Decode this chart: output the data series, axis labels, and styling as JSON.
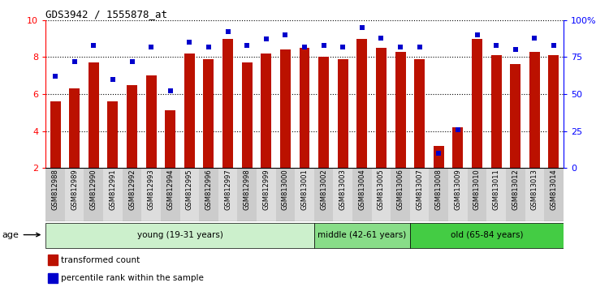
{
  "title": "GDS3942 / 1555878_at",
  "samples": [
    "GSM812988",
    "GSM812989",
    "GSM812990",
    "GSM812991",
    "GSM812992",
    "GSM812993",
    "GSM812994",
    "GSM812995",
    "GSM812996",
    "GSM812997",
    "GSM812998",
    "GSM812999",
    "GSM813000",
    "GSM813001",
    "GSM813002",
    "GSM813003",
    "GSM813004",
    "GSM813005",
    "GSM813006",
    "GSM813007",
    "GSM813008",
    "GSM813009",
    "GSM813010",
    "GSM813011",
    "GSM813012",
    "GSM813013",
    "GSM813014"
  ],
  "bar_values": [
    5.6,
    6.3,
    7.7,
    5.6,
    6.5,
    7.0,
    5.1,
    8.2,
    7.9,
    9.0,
    7.7,
    8.2,
    8.4,
    8.5,
    8.0,
    7.9,
    9.0,
    8.5,
    8.3,
    7.9,
    3.2,
    4.2,
    9.0,
    8.1,
    7.6,
    8.3,
    8.1
  ],
  "dot_values": [
    62,
    72,
    83,
    60,
    72,
    82,
    52,
    85,
    82,
    92,
    83,
    87,
    90,
    82,
    83,
    82,
    95,
    88,
    82,
    82,
    10,
    26,
    90,
    83,
    80,
    88,
    83
  ],
  "groups": [
    {
      "label": "young (19-31 years)",
      "start": 0,
      "end": 14,
      "color": "#ccf0cc"
    },
    {
      "label": "middle (42-61 years)",
      "start": 14,
      "end": 19,
      "color": "#88dd88"
    },
    {
      "label": "old (65-84 years)",
      "start": 19,
      "end": 27,
      "color": "#44cc44"
    }
  ],
  "bar_color": "#bb1100",
  "dot_color": "#0000cc",
  "bar_bottom": 2.0,
  "ylim_left": [
    2,
    10
  ],
  "ylim_right": [
    0,
    100
  ],
  "yticks_left": [
    2,
    4,
    6,
    8,
    10
  ],
  "yticks_right": [
    0,
    25,
    50,
    75,
    100
  ],
  "ytick_labels_right": [
    "0",
    "25",
    "50",
    "75",
    "100%"
  ],
  "legend_bar": "transformed count",
  "legend_dot": "percentile rank within the sample",
  "age_label": "age"
}
